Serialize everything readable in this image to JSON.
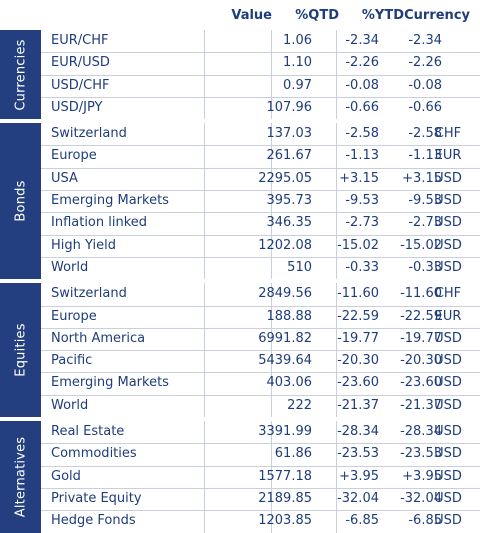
{
  "columns": {
    "value": "Value",
    "qtd": "%QTD",
    "ytd": "%YTD",
    "currency": "Currency"
  },
  "groups": [
    {
      "name": "Currencies",
      "rows": [
        {
          "name": "EUR/CHF",
          "value": "1.06",
          "qtd": "-2.34",
          "ytd": "-2.34",
          "currency": ""
        },
        {
          "name": "EUR/USD",
          "value": "1.10",
          "qtd": "-2.26",
          "ytd": "-2.26",
          "currency": ""
        },
        {
          "name": "USD/CHF",
          "value": "0.97",
          "qtd": "-0.08",
          "ytd": "-0.08",
          "currency": ""
        },
        {
          "name": "USD/JPY",
          "value": "107.96",
          "qtd": "-0.66",
          "ytd": "-0.66",
          "currency": ""
        }
      ]
    },
    {
      "name": "Bonds",
      "rows": [
        {
          "name": "Switzerland",
          "value": "137.03",
          "qtd": "-2.58",
          "ytd": "-2.58",
          "currency": "CHF"
        },
        {
          "name": "Europe",
          "value": "261.67",
          "qtd": "-1.13",
          "ytd": "-1.13",
          "currency": "EUR"
        },
        {
          "name": "USA",
          "value": "2295.05",
          "qtd": "+3.15",
          "ytd": "+3.15",
          "currency": "USD"
        },
        {
          "name": "Emerging Markets",
          "value": "395.73",
          "qtd": "-9.53",
          "ytd": "-9.53",
          "currency": "USD"
        },
        {
          "name": "Inflation linked",
          "value": "346.35",
          "qtd": "-2.73",
          "ytd": "-2.73",
          "currency": "USD"
        },
        {
          "name": "High Yield",
          "value": "1202.08",
          "qtd": "-15.02",
          "ytd": "-15.02",
          "currency": "USD"
        },
        {
          "name": "World",
          "value": "510",
          "qtd": "-0.33",
          "ytd": "-0.33",
          "currency": "USD"
        }
      ]
    },
    {
      "name": "Equities",
      "rows": [
        {
          "name": "Switzerland",
          "value": "2849.56",
          "qtd": "-11.60",
          "ytd": "-11.60",
          "currency": "CHF"
        },
        {
          "name": "Europe",
          "value": "188.88",
          "qtd": "-22.59",
          "ytd": "-22.59",
          "currency": "EUR"
        },
        {
          "name": "North America",
          "value": "6991.82",
          "qtd": "-19.77",
          "ytd": "-19.77",
          "currency": "USD"
        },
        {
          "name": "Pacific",
          "value": "5439.64",
          "qtd": "-20.30",
          "ytd": "-20.30",
          "currency": "USD"
        },
        {
          "name": "Emerging Markets",
          "value": "403.06",
          "qtd": "-23.60",
          "ytd": "-23.60",
          "currency": "USD"
        },
        {
          "name": "World",
          "value": "222",
          "qtd": "-21.37",
          "ytd": "-21.37",
          "currency": "USD"
        }
      ]
    },
    {
      "name": "Alternatives",
      "rows": [
        {
          "name": "Real Estate",
          "value": "3391.99",
          "qtd": "-28.34",
          "ytd": "-28.34",
          "currency": "USD"
        },
        {
          "name": "Commodities",
          "value": "61.86",
          "qtd": "-23.53",
          "ytd": "-23.53",
          "currency": "USD"
        },
        {
          "name": "Gold",
          "value": "1577.18",
          "qtd": "+3.95",
          "ytd": "+3.95",
          "currency": "USD"
        },
        {
          "name": "Private Equity",
          "value": "2189.85",
          "qtd": "-32.04",
          "ytd": "-32.04",
          "currency": "USD"
        },
        {
          "name": "Hedge Fonds",
          "value": "1203.85",
          "qtd": "-6.85",
          "ytd": "-6.85",
          "currency": "USD"
        }
      ]
    }
  ]
}
